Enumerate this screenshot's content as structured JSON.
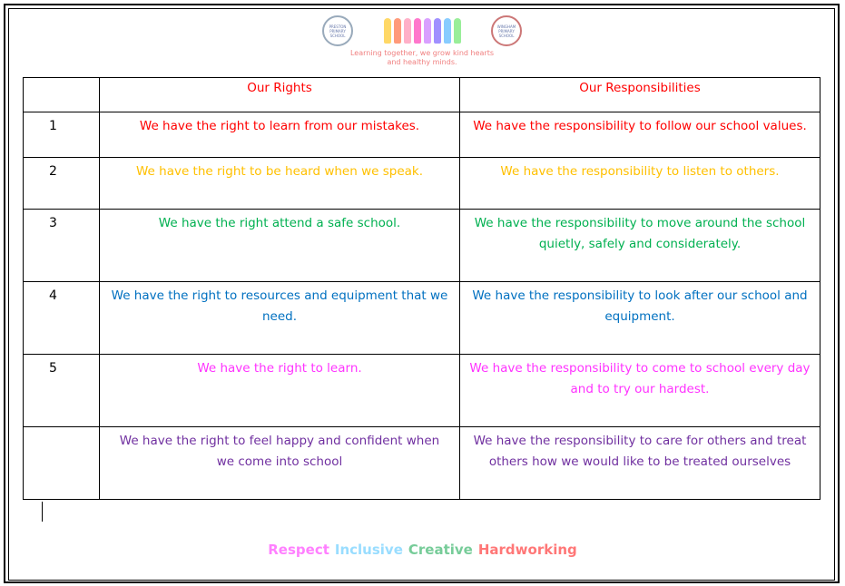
{
  "header": {
    "logo_left": "PRESTON PRIMARY SCHOOL",
    "logo_right": "WINGHAM PRIMARY SCHOOL",
    "tagline_1": "Learning together, we grow kind hearts",
    "tagline_2": "and healthy minds."
  },
  "table": {
    "headers": [
      "",
      "Our Rights",
      "Our Responsibilities"
    ],
    "rows": [
      {
        "num": "1",
        "right": "We have the right to learn from our mistakes.",
        "resp": "We have the responsibility to follow our school values.",
        "color": "#ff0000"
      },
      {
        "num": "2",
        "right": "We have the right to be heard when we speak.",
        "resp": "We have the responsibility to listen to others.",
        "color": "#ffc000"
      },
      {
        "num": "3",
        "right": "We have the right attend a safe school.",
        "resp": "We have the responsibility to move around the school quietly, safely and considerately.",
        "color": "#00b050"
      },
      {
        "num": "4",
        "right": "We have the right to resources and equipment that we need.",
        "resp": "We have the responsibility to look after our school and equipment.",
        "color": "#0070c0"
      },
      {
        "num": "5",
        "right": "We have the right to learn.",
        "resp": "We have the responsibility to come to school every day and to try our hardest.",
        "color": "#ff33ff"
      },
      {
        "num": "",
        "right": "We have the right to feel happy and confident when we come into school",
        "resp": "We have the responsibility to care for others and treat others how we would like to be treated ourselves",
        "color": "#7030a0"
      }
    ],
    "header_color": "#ff0000"
  },
  "footer": {
    "values": [
      {
        "label": "Respect",
        "color": "#ff80ff"
      },
      {
        "label": "Inclusive",
        "color": "#99ddff"
      },
      {
        "label": "Creative",
        "color": "#77cc99"
      },
      {
        "label": "Hardworking",
        "color": "#ff7777"
      }
    ]
  }
}
